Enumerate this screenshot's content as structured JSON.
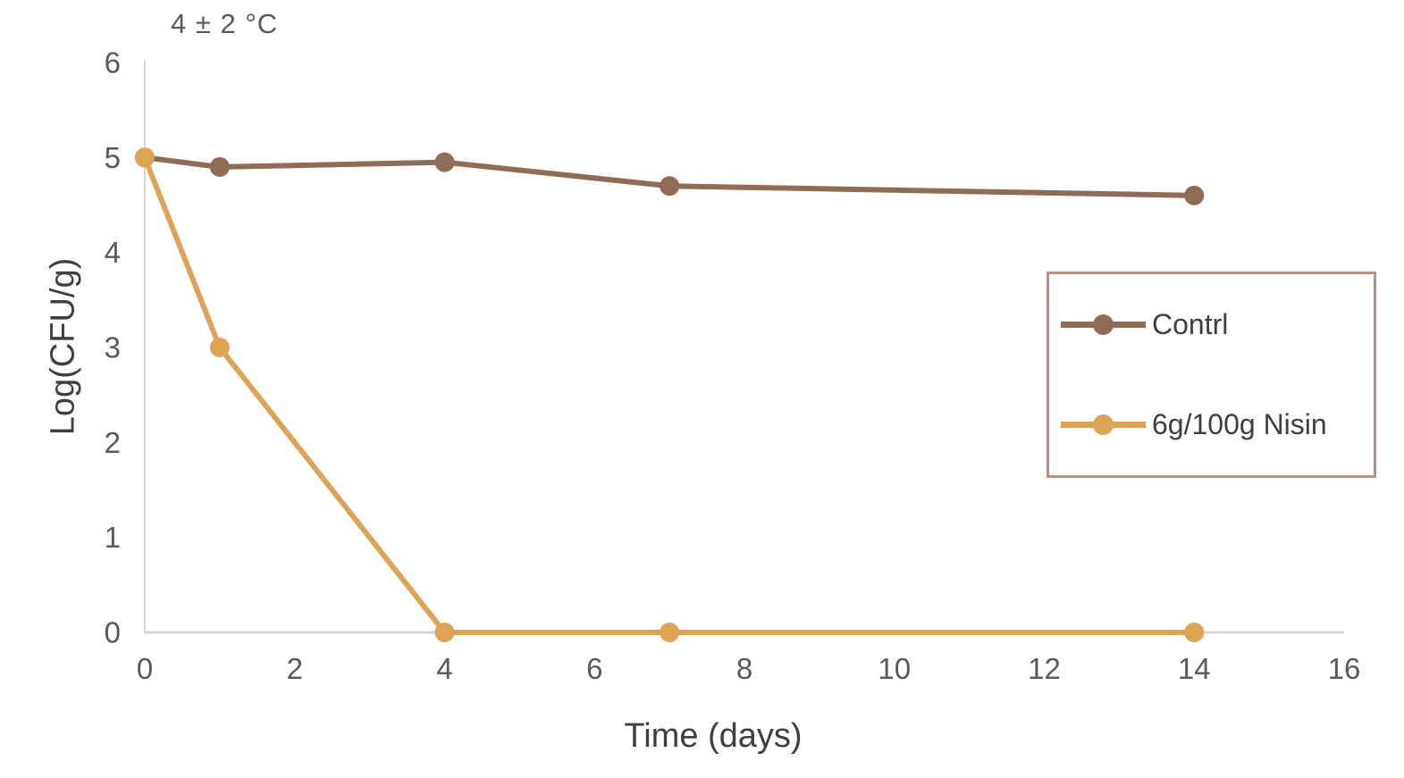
{
  "chart_data": {
    "type": "line",
    "title": "4 ± 2 °C",
    "xlabel": "Time (days)",
    "ylabel": "Log(CFU/g)",
    "x": [
      0,
      1,
      4,
      7,
      14
    ],
    "series": [
      {
        "name": "Contrl",
        "color": "#8F6C53",
        "values": [
          5.0,
          4.9,
          4.95,
          4.7,
          4.6
        ]
      },
      {
        "name": "6g/100g Nisin",
        "color": "#DEA456",
        "values": [
          5.0,
          3.0,
          0.0,
          0.0,
          0.0
        ]
      }
    ],
    "xlim": [
      0,
      16
    ],
    "ylim": [
      0,
      6
    ],
    "x_ticks": [
      0,
      2,
      4,
      6,
      8,
      10,
      12,
      14,
      16
    ],
    "y_ticks": [
      0,
      1,
      2,
      3,
      4,
      5,
      6
    ],
    "grid": false,
    "legend_position": "center-right",
    "marker": "circle",
    "colors": {
      "axis_line": "#D6D6D6",
      "tick_label": "#595959",
      "axis_title": "#3F3F3F",
      "chart_title": "#595959",
      "legend_border": "#B99181",
      "legend_text": "#3F3F3F",
      "background": "#FFFFFF"
    }
  }
}
